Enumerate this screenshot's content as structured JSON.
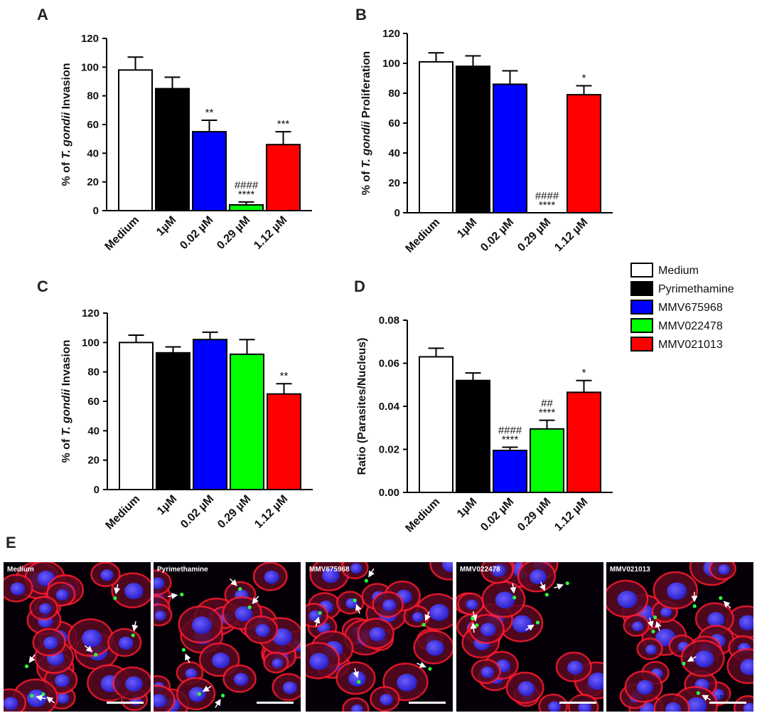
{
  "chart_data": [
    {
      "panel": "A",
      "type": "bar",
      "categories": [
        "Medium",
        "1µM",
        "0.02 µM",
        "0.29 µM",
        "1.12 µM"
      ],
      "values": [
        98,
        85,
        55,
        4,
        46
      ],
      "errors": [
        9,
        8,
        8,
        2,
        9
      ],
      "colors": [
        "#ffffff",
        "#000000",
        "#0000ff",
        "#00ff00",
        "#ff0000"
      ],
      "annotations": [
        "",
        "",
        "**",
        "####\n****",
        "***"
      ],
      "ylabel_prefix": "% of ",
      "ylabel_italic": "T. gondii",
      "ylabel_suffix": " Invasion",
      "ylim": [
        0,
        120
      ],
      "ticks": [
        "0",
        "20",
        "40",
        "60",
        "80",
        "100",
        "120"
      ]
    },
    {
      "panel": "B",
      "type": "bar",
      "categories": [
        "Medium",
        "1µM",
        "0.02 µM",
        "0.29 µM",
        "1.12 µM"
      ],
      "values": [
        101,
        98,
        86,
        0,
        79
      ],
      "errors": [
        6,
        7,
        9,
        0,
        6
      ],
      "colors": [
        "#ffffff",
        "#000000",
        "#0000ff",
        "#00ff00",
        "#ff0000"
      ],
      "annotations": [
        "",
        "",
        "",
        "####\n****",
        "*"
      ],
      "ylabel_prefix": "% of ",
      "ylabel_italic": "T. gondii",
      "ylabel_suffix": " Proliferation",
      "ylim": [
        0,
        120
      ],
      "ticks": [
        "0",
        "20",
        "40",
        "60",
        "80",
        "100",
        "120"
      ]
    },
    {
      "panel": "C",
      "type": "bar",
      "categories": [
        "Medium",
        "1µM",
        "0.02 µM",
        "0.29 µM",
        "1.12 µM"
      ],
      "values": [
        100,
        93,
        102,
        92,
        65
      ],
      "errors": [
        5,
        4,
        5,
        10,
        7
      ],
      "colors": [
        "#ffffff",
        "#000000",
        "#0000ff",
        "#00ff00",
        "#ff0000"
      ],
      "annotations": [
        "",
        "",
        "",
        "",
        "**"
      ],
      "ylabel_prefix": "% of ",
      "ylabel_italic": "T. gondii",
      "ylabel_suffix": " Invasion",
      "ylim": [
        0,
        120
      ],
      "ticks": [
        "0",
        "20",
        "40",
        "60",
        "80",
        "100",
        "120"
      ]
    },
    {
      "panel": "D",
      "type": "bar",
      "categories": [
        "Medium",
        "1µM",
        "0.02 µM",
        "0.29 µM",
        "1.12 µM"
      ],
      "values": [
        0.063,
        0.052,
        0.0195,
        0.0295,
        0.0465
      ],
      "errors": [
        0.004,
        0.0035,
        0.0015,
        0.004,
        0.0055
      ],
      "colors": [
        "#ffffff",
        "#000000",
        "#0000ff",
        "#00ff00",
        "#ff0000"
      ],
      "annotations": [
        "",
        "",
        "####\n****",
        "##\n****",
        "*"
      ],
      "ylabel_prefix": "Ratio (Parasites/Nucleus)",
      "ylabel_italic": "",
      "ylabel_suffix": "",
      "ylim": [
        0,
        0.08
      ],
      "ticks": [
        "0.00",
        "0.02",
        "0.04",
        "0.06",
        "0.08"
      ]
    }
  ],
  "legend": [
    {
      "label": "Medium",
      "color": "#ffffff"
    },
    {
      "label": "Pyrimethamine",
      "color": "#000000"
    },
    {
      "label": "MMV675968",
      "color": "#0000ff"
    },
    {
      "label": "MMV022478",
      "color": "#00ff00"
    },
    {
      "label": "MMV021013",
      "color": "#ff0000"
    }
  ],
  "panel_e": {
    "letter": "E",
    "scale_bar": "50 µm",
    "images": [
      {
        "label": "Medium"
      },
      {
        "label": "Pyrimethamine"
      },
      {
        "label": "MMV675968"
      },
      {
        "label": "MMV022478"
      },
      {
        "label": "MMV021013"
      }
    ]
  }
}
